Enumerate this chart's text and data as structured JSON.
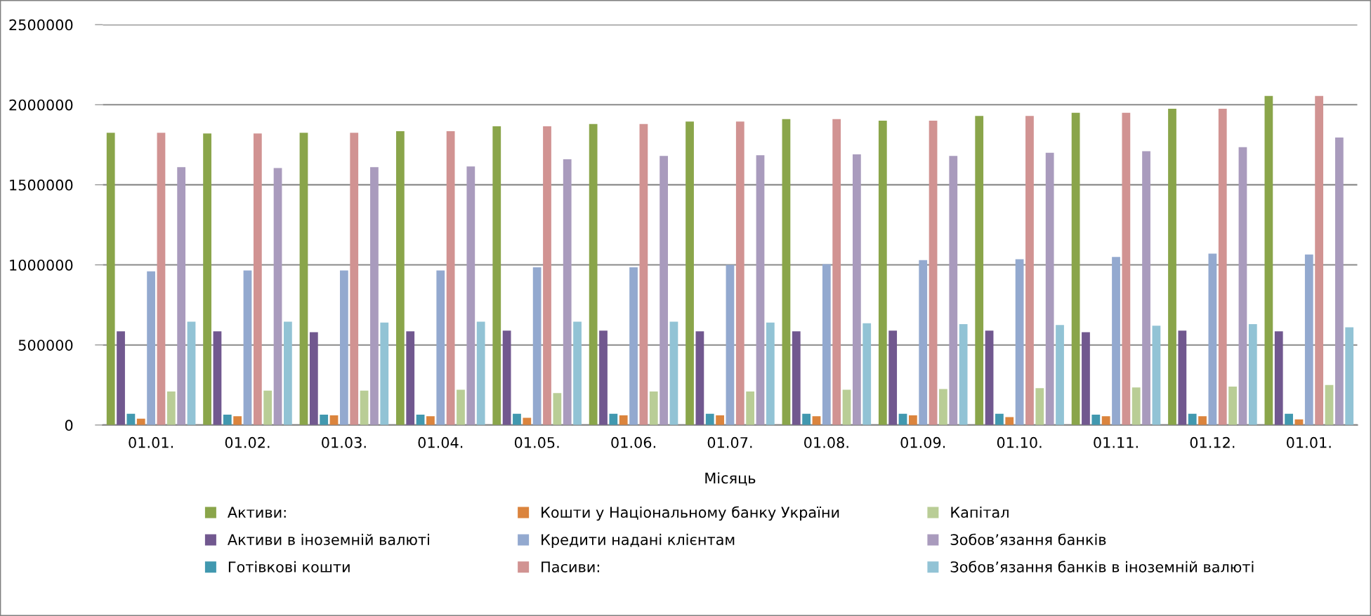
{
  "chart_data": {
    "type": "bar",
    "xlabel": "Місяць",
    "categories": [
      "01.01.",
      "01.02.",
      "01.03.",
      "01.04.",
      "01.05.",
      "01.06.",
      "01.07.",
      "01.08.",
      "01.09.",
      "01.10.",
      "01.11.",
      "01.12.",
      "01.01."
    ],
    "series": [
      {
        "name": "Активи:",
        "color": "#8aa54a",
        "values": [
          1825000,
          1820000,
          1825000,
          1835000,
          1865000,
          1880000,
          1895000,
          1910000,
          1900000,
          1930000,
          1950000,
          1975000,
          2055000
        ]
      },
      {
        "name": "Активи в іноземній валюті",
        "color": "#71588f",
        "values": [
          585000,
          585000,
          580000,
          585000,
          590000,
          590000,
          585000,
          585000,
          590000,
          590000,
          580000,
          590000,
          585000
        ]
      },
      {
        "name": "Готівкові кошти",
        "color": "#4198af",
        "values": [
          70000,
          65000,
          65000,
          65000,
          70000,
          70000,
          70000,
          70000,
          70000,
          70000,
          65000,
          70000,
          70000
        ]
      },
      {
        "name": "Кошти у Національному банку України",
        "color": "#db843d",
        "values": [
          40000,
          55000,
          60000,
          55000,
          45000,
          60000,
          60000,
          55000,
          60000,
          50000,
          55000,
          55000,
          35000
        ]
      },
      {
        "name": "Кредити надані клієнтам",
        "color": "#93a9cf",
        "values": [
          960000,
          965000,
          965000,
          965000,
          985000,
          985000,
          1000000,
          1005000,
          1030000,
          1035000,
          1050000,
          1070000,
          1065000
        ]
      },
      {
        "name": "Пасиви:",
        "color": "#d19392",
        "values": [
          1825000,
          1820000,
          1825000,
          1835000,
          1865000,
          1880000,
          1895000,
          1910000,
          1900000,
          1930000,
          1950000,
          1975000,
          2055000
        ]
      },
      {
        "name": "Капітал",
        "color": "#b9cd96",
        "values": [
          210000,
          215000,
          215000,
          220000,
          200000,
          210000,
          210000,
          220000,
          225000,
          230000,
          235000,
          240000,
          250000
        ]
      },
      {
        "name": "Зобов’язання банків",
        "color": "#a99bbd",
        "values": [
          1610000,
          1605000,
          1610000,
          1615000,
          1660000,
          1680000,
          1685000,
          1690000,
          1680000,
          1700000,
          1710000,
          1735000,
          1795000
        ]
      },
      {
        "name": "Зобов’язання банків в іноземній валюті",
        "color": "#92c3d5",
        "values": [
          645000,
          645000,
          640000,
          645000,
          645000,
          645000,
          640000,
          635000,
          630000,
          625000,
          620000,
          630000,
          610000
        ]
      }
    ],
    "ylim": [
      0,
      2500000
    ],
    "yticks": [
      0,
      500000,
      1000000,
      1500000,
      2000000,
      2500000
    ],
    "grid": "y",
    "legend": "bottom"
  }
}
